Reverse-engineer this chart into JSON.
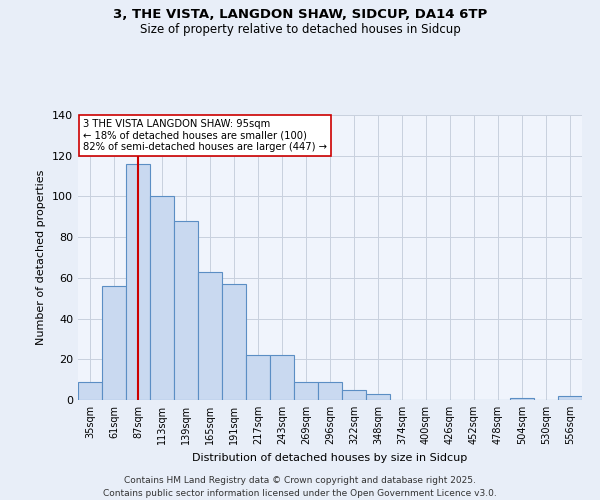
{
  "title1": "3, THE VISTA, LANGDON SHAW, SIDCUP, DA14 6TP",
  "title2": "Size of property relative to detached houses in Sidcup",
  "xlabel": "Distribution of detached houses by size in Sidcup",
  "ylabel": "Number of detached properties",
  "categories": [
    "35sqm",
    "61sqm",
    "87sqm",
    "113sqm",
    "139sqm",
    "165sqm",
    "191sqm",
    "217sqm",
    "243sqm",
    "269sqm",
    "296sqm",
    "322sqm",
    "348sqm",
    "374sqm",
    "400sqm",
    "426sqm",
    "452sqm",
    "478sqm",
    "504sqm",
    "530sqm",
    "556sqm"
  ],
  "bar_values": [
    9,
    56,
    116,
    100,
    88,
    63,
    57,
    22,
    22,
    9,
    9,
    5,
    3,
    0,
    0,
    0,
    0,
    0,
    1,
    0,
    2
  ],
  "bar_color": "#c9d9f0",
  "bar_edge_color": "#5b8ec4",
  "vline_x_index": 2,
  "vline_color": "#cc0000",
  "annotation_line1": "3 THE VISTA LANGDON SHAW: 95sqm",
  "annotation_line2": "← 18% of detached houses are smaller (100)",
  "annotation_line3": "82% of semi-detached houses are larger (447) →",
  "annotation_box_color": "#ffffff",
  "annotation_box_edge": "#cc0000",
  "ylim": [
    0,
    140
  ],
  "yticks": [
    0,
    20,
    40,
    60,
    80,
    100,
    120,
    140
  ],
  "footer": "Contains HM Land Registry data © Crown copyright and database right 2025.\nContains public sector information licensed under the Open Government Licence v3.0.",
  "bg_color": "#e8eef8",
  "plot_bg_color": "#f0f4fc",
  "grid_color": "#c8d0de"
}
